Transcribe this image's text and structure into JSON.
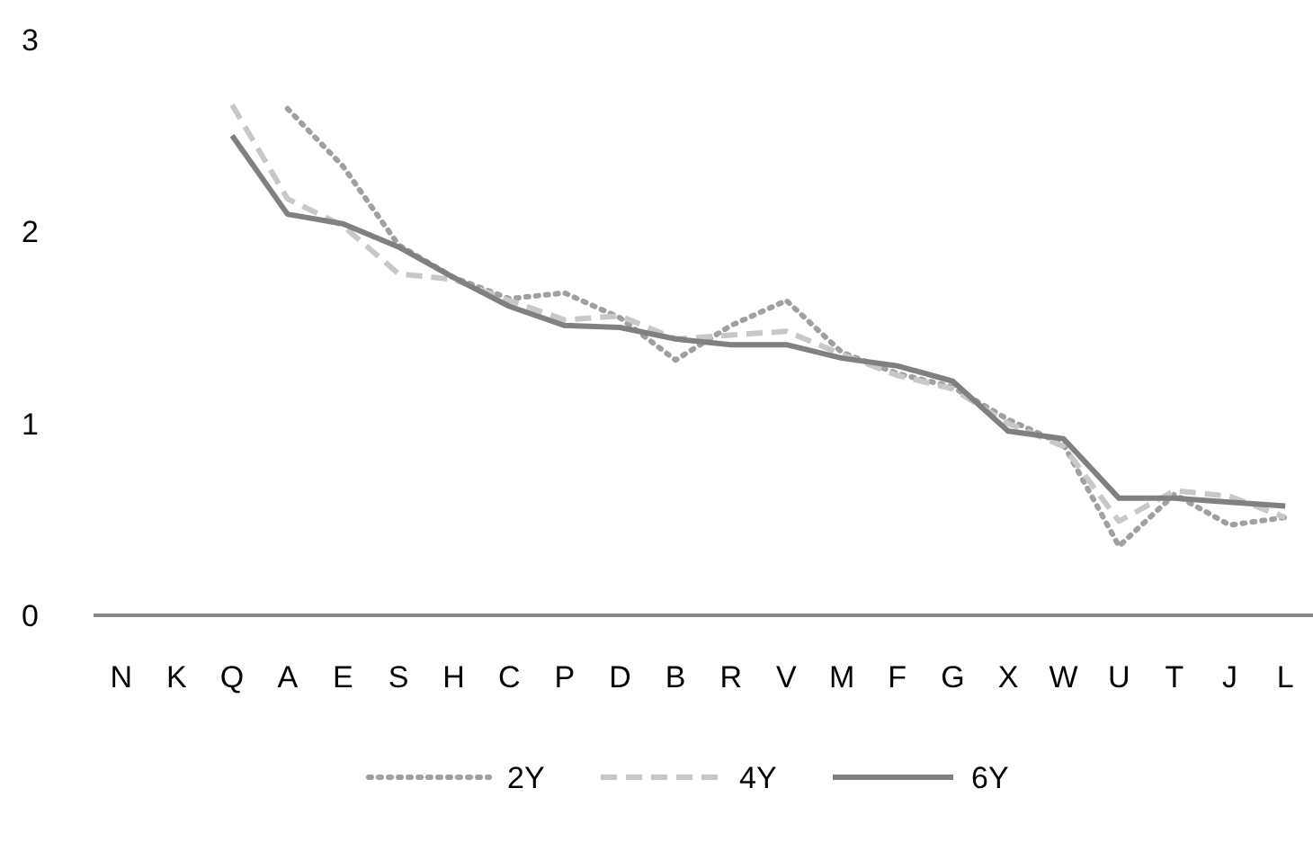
{
  "chart_data": {
    "type": "line",
    "categories": [
      "N",
      "K",
      "Q",
      "A",
      "E",
      "S",
      "H",
      "C",
      "P",
      "D",
      "B",
      "R",
      "V",
      "M",
      "F",
      "G",
      "X",
      "W",
      "U",
      "T",
      "J",
      "L"
    ],
    "ylim": [
      0,
      3
    ],
    "yticks": [
      0,
      1,
      2,
      3
    ],
    "grid": false,
    "legend": "bottom",
    "marker": "none",
    "series": [
      {
        "name": "2Y",
        "color": "#a0a0a0",
        "line_style": "dotted",
        "values": [
          null,
          null,
          null,
          2.64,
          2.34,
          1.93,
          1.76,
          1.65,
          1.68,
          1.55,
          1.33,
          1.51,
          1.64,
          1.37,
          1.26,
          1.19,
          1.02,
          0.89,
          0.36,
          0.63,
          0.47,
          0.51
        ]
      },
      {
        "name": "4Y",
        "color": "#c8c8c8",
        "line_style": "dashed",
        "values": [
          null,
          null,
          2.66,
          2.17,
          2.03,
          1.78,
          1.75,
          1.64,
          1.54,
          1.56,
          1.44,
          1.46,
          1.48,
          1.36,
          1.25,
          1.18,
          1.0,
          0.88,
          0.49,
          0.65,
          0.62,
          0.51
        ]
      },
      {
        "name": "6Y",
        "color": "#808080",
        "line_style": "solid",
        "values": [
          null,
          null,
          2.5,
          2.09,
          2.04,
          1.92,
          1.76,
          1.61,
          1.51,
          1.5,
          1.44,
          1.41,
          1.41,
          1.34,
          1.3,
          1.22,
          0.96,
          0.92,
          0.61,
          0.61,
          0.59,
          0.57
        ]
      }
    ]
  }
}
